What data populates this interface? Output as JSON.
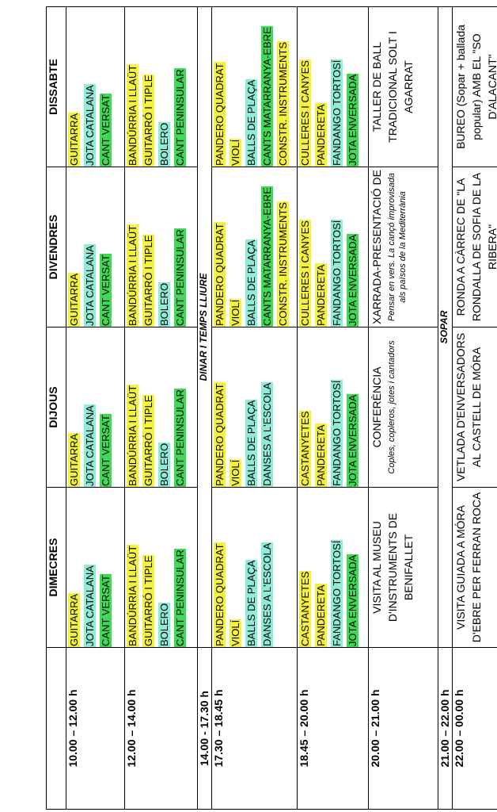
{
  "days": [
    "DIMECRES",
    "DIJOUS",
    "DIVENDRES",
    "DISSABTE"
  ],
  "colors": {
    "yellow": "#f4f23a",
    "cyan": "#8fecd6",
    "green": "#3fda55"
  },
  "times": {
    "t1": "10.00 – 12.00 h",
    "t2": "12.00 – 14.00 h",
    "t3": "14.00 - 17.30 h",
    "t4": "17.30 – 18.45 h",
    "t5": "18.45 – 20.00 h",
    "t6": "20.00 – 21.00 h",
    "t7": "21.00 – 22.00 h",
    "t8": "22.00 – 00.00 h"
  },
  "dinar": "DINAR I TEMPS LLIURE",
  "sopar": "SOPAR",
  "slots": {
    "s1": [
      [
        {
          "t": "GUITARRA",
          "c": "y"
        },
        {
          "t": "JOTA CATALANA",
          "c": "c"
        },
        {
          "t": "CANT VERSAT",
          "c": "g"
        }
      ],
      [
        {
          "t": "GUITARRA",
          "c": "y"
        },
        {
          "t": "JOTA CATALANA",
          "c": "c"
        },
        {
          "t": "CANT VERSAT",
          "c": "g"
        }
      ],
      [
        {
          "t": "GUITARRA",
          "c": "y"
        },
        {
          "t": "JOTA CATALANA",
          "c": "c"
        },
        {
          "t": "CANT VERSAT",
          "c": "g"
        }
      ],
      [
        {
          "t": "GUITARRA",
          "c": "y"
        },
        {
          "t": "JOTA CATALANA",
          "c": "c"
        },
        {
          "t": "CANT VERSAT",
          "c": "g"
        }
      ]
    ],
    "s2": [
      [
        {
          "t": "BANDÚRRIA I LLAÜT",
          "c": "y"
        },
        {
          "t": "GUITARRÓ I TIPLE",
          "c": "y"
        },
        {
          "t": "BOLERO",
          "c": "c"
        },
        {
          "t": "CANT PENINSULAR",
          "c": "g"
        }
      ],
      [
        {
          "t": "BANDÚRRIA I LLAÜT",
          "c": "y"
        },
        {
          "t": "GUITARRÓ I TIPLE",
          "c": "y"
        },
        {
          "t": "BOLERO",
          "c": "c"
        },
        {
          "t": "CANT PENINSULAR",
          "c": "g"
        }
      ],
      [
        {
          "t": "BANDÚRRIA I LLAÜT",
          "c": "y"
        },
        {
          "t": "GUITARRÓ I TIPLE",
          "c": "y"
        },
        {
          "t": "BOLERO",
          "c": "c"
        },
        {
          "t": "CANT PENINSULAR",
          "c": "g"
        }
      ],
      [
        {
          "t": "BANDÚRRIA I LLAÜT",
          "c": "y"
        },
        {
          "t": "GUITARRÓ I TIPLE",
          "c": "y"
        },
        {
          "t": "BOLERO",
          "c": "c"
        },
        {
          "t": "CANT PENINSULAR",
          "c": "g"
        }
      ]
    ],
    "s4": [
      [
        {
          "t": "PANDERO QUADRAT",
          "c": "y"
        },
        {
          "t": "VIOLÍ",
          "c": "y"
        },
        {
          "t": "BALLS DE PLAÇA",
          "c": "c"
        },
        {
          "t": "DANSES A L'ESCOLA",
          "c": "c"
        }
      ],
      [
        {
          "t": "PANDERO QUADRAT",
          "c": "y"
        },
        {
          "t": "VIOLÍ",
          "c": "y"
        },
        {
          "t": "BALLS DE PLAÇA",
          "c": "c"
        },
        {
          "t": "DANSES A L'ESCOLA",
          "c": "c"
        }
      ],
      [
        {
          "t": "PANDERO QUADRAT",
          "c": "y"
        },
        {
          "t": "VIOLÍ",
          "c": "y"
        },
        {
          "t": "BALLS DE PLAÇA",
          "c": "c"
        },
        {
          "t": "CANTS MATARRANYA-EBRE",
          "c": "g"
        },
        {
          "t": "CONSTR. INSTRUMENTS",
          "c": "y"
        }
      ],
      [
        {
          "t": "PANDERO QUADRAT",
          "c": "y"
        },
        {
          "t": "VIOLÍ",
          "c": "y"
        },
        {
          "t": "BALLS DE PLAÇA",
          "c": "c"
        },
        {
          "t": "CANTS MATARRANYA-EBRE",
          "c": "g"
        },
        {
          "t": "CONSTR. INSTRUMENTS",
          "c": "y"
        }
      ]
    ],
    "s5": [
      [
        {
          "t": "CASTANYETES",
          "c": "y"
        },
        {
          "t": "PANDERETA",
          "c": "y"
        },
        {
          "t": "FANDANGO TORTOSÍ",
          "c": "c"
        },
        {
          "t": "JOTA ENVERSADA",
          "c": "g"
        }
      ],
      [
        {
          "t": "CASTANYETES",
          "c": "y"
        },
        {
          "t": "PANDERETA",
          "c": "y"
        },
        {
          "t": "FANDANGO TORTOSÍ",
          "c": "c"
        },
        {
          "t": "JOTA ENVERSADA",
          "c": "g"
        }
      ],
      [
        {
          "t": "CULLERES I CANYES",
          "c": "y"
        },
        {
          "t": "PANDERETA",
          "c": "y"
        },
        {
          "t": "FANDANGO TORTOSÍ",
          "c": "c"
        },
        {
          "t": "JOTA ENVERSADA",
          "c": "g"
        }
      ],
      [
        {
          "t": "CULLERES I CANYES",
          "c": "y"
        },
        {
          "t": "PANDERETA",
          "c": "y"
        },
        {
          "t": "FANDANGO TORTOSÍ",
          "c": "c"
        },
        {
          "t": "JOTA ENVERSADA",
          "c": "g"
        }
      ]
    ]
  },
  "evening": {
    "e1": "VISITA AL MUSEU D'INSTRUMENTS DE BENIFALLET",
    "e2": "CONFERÈNCIA",
    "e2_sub": "Coples, copleros, jotes i cantadors",
    "e3": "XARRADA-PRESENTACIÓ DE",
    "e3_sub": "Pensar en vers. La cançó improvisada als països de la Mediterrània",
    "e4": "TALLER DE BALL TRADICIONAL SOLT I AGARRAT"
  },
  "night": {
    "n1": "VISITA GUIADA A MÓRA D'EBRE PER FERRAN ROCA",
    "n2": "VETLADA D'ENVERSADORS AL CASTELL DE MÓRA",
    "n3": "RONDA A CÀRREC DE \"LA RONDALLA DE SOFIA DE LA RIBERA\"",
    "n4": "BUREO (Sopar + ballada popular) AMB EL \"SO D'ALACANT\""
  }
}
